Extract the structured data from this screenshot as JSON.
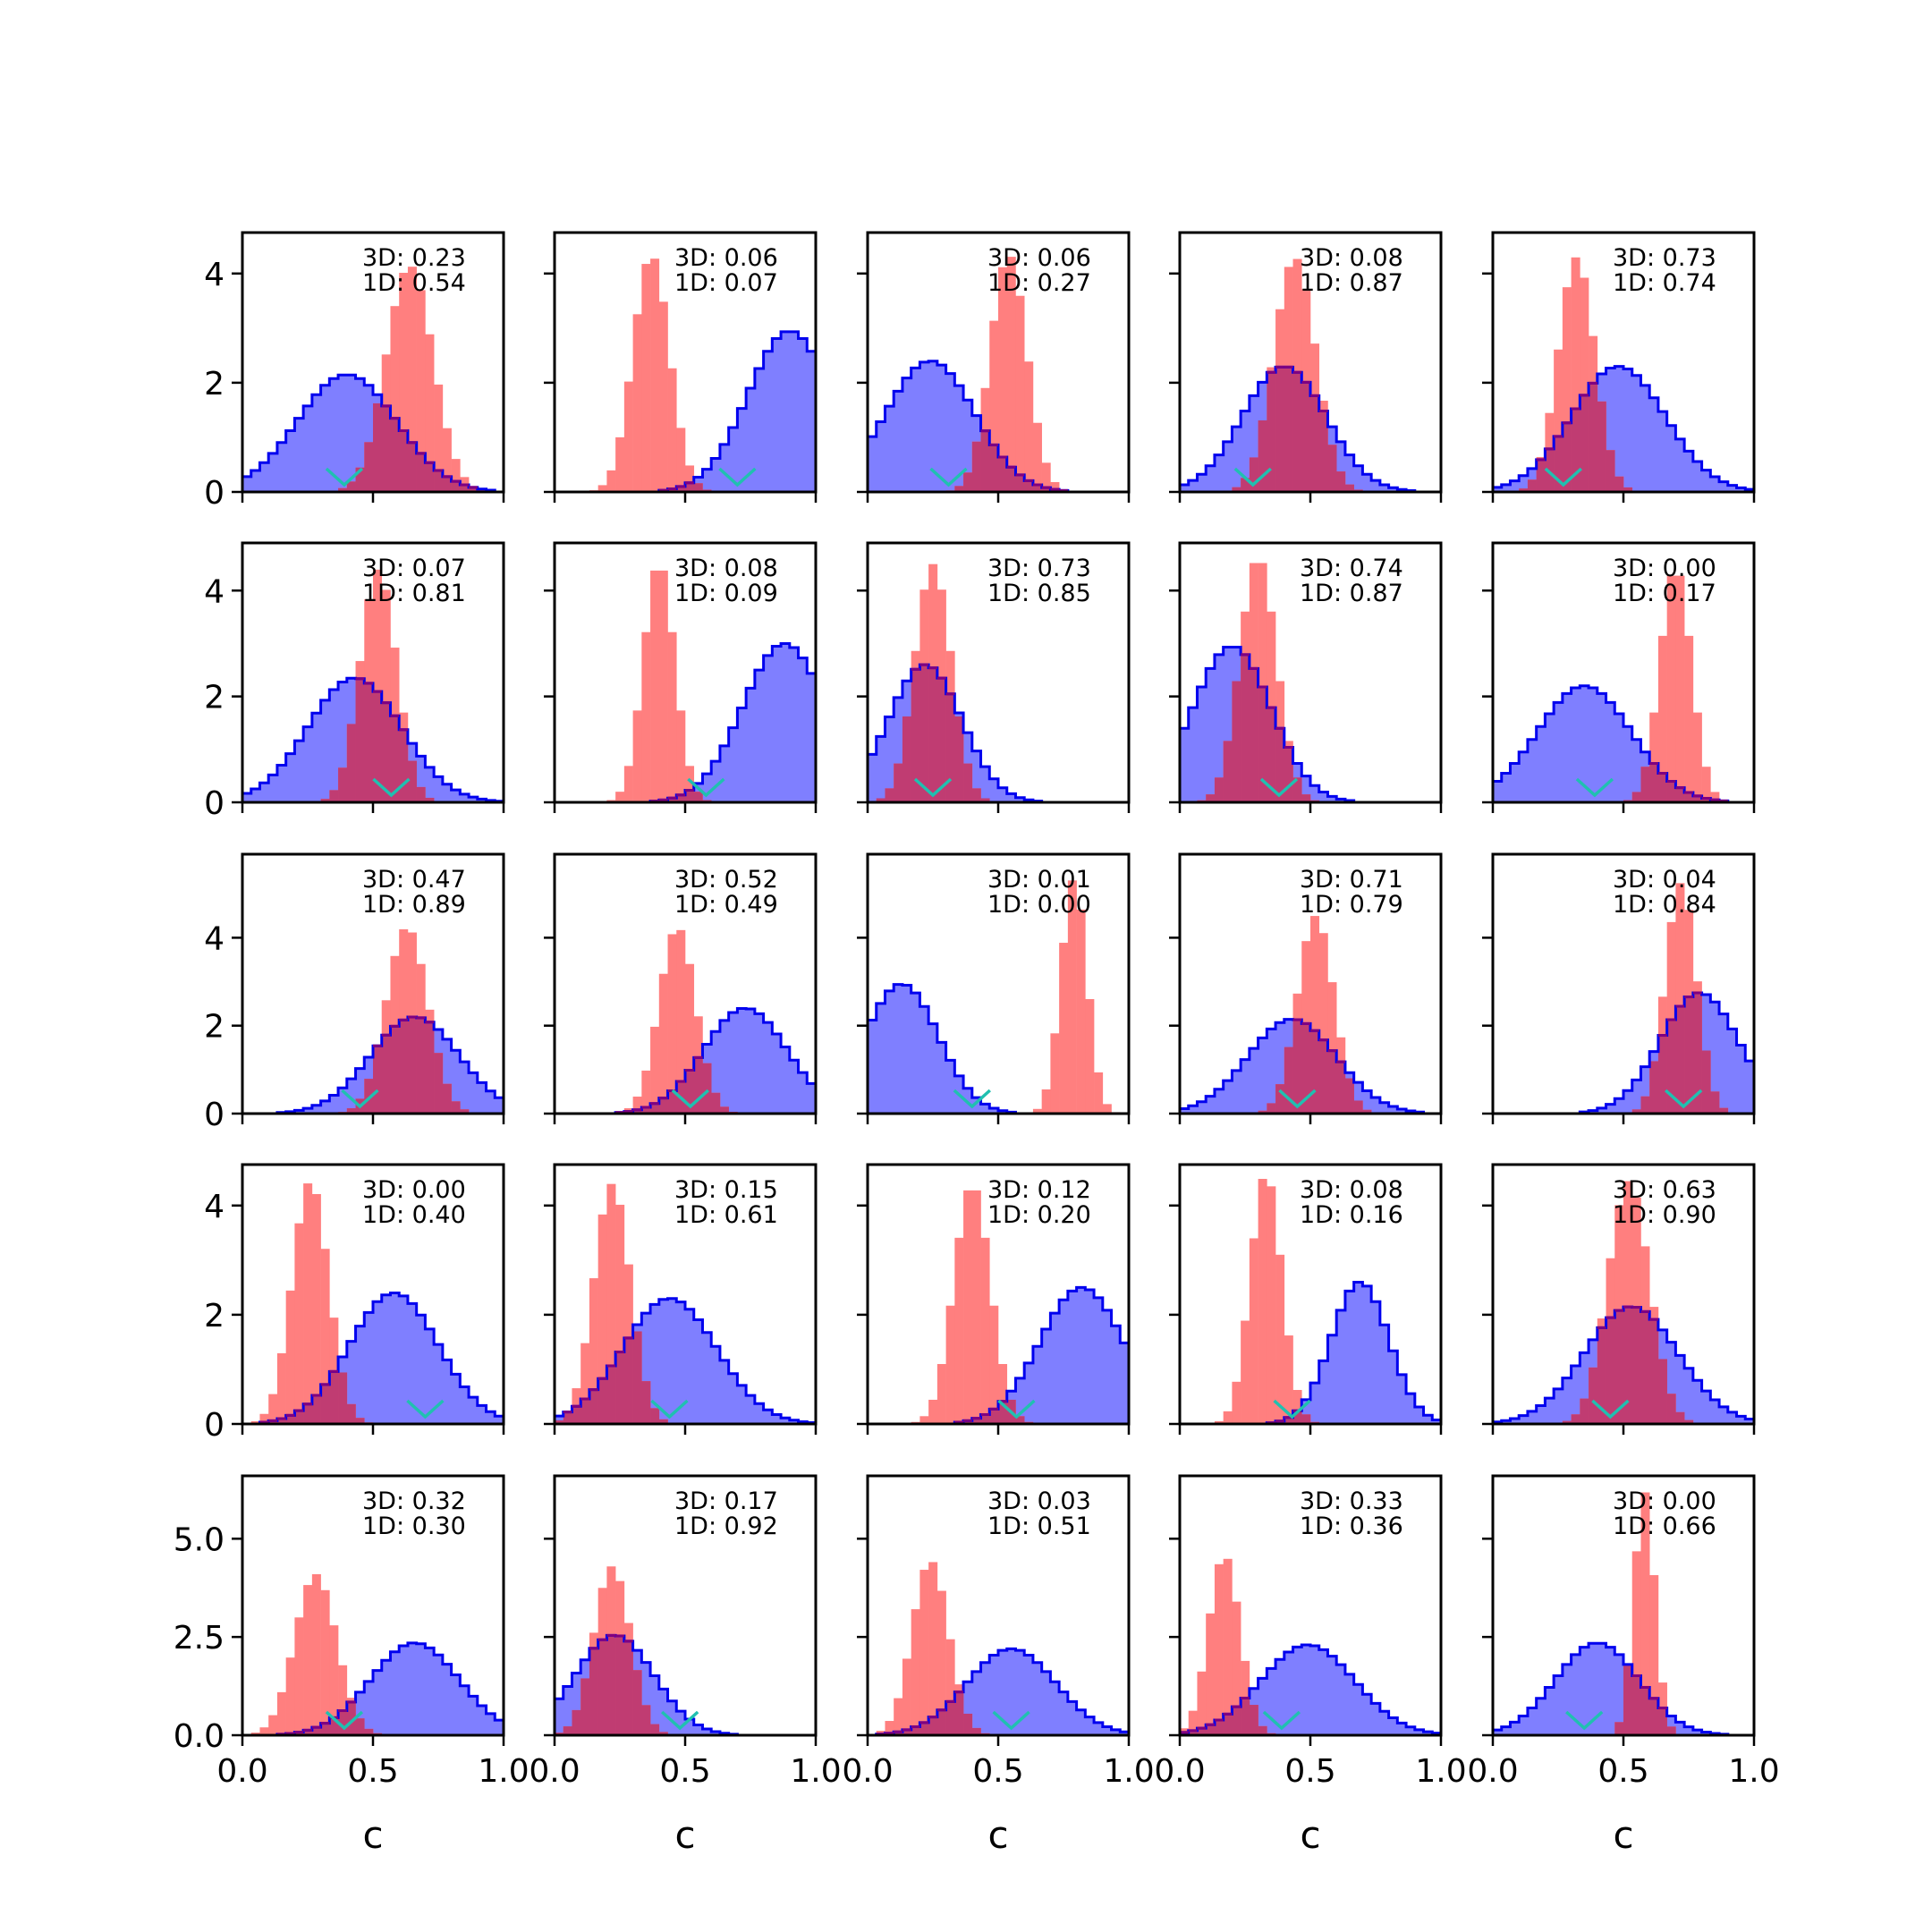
{
  "figure": {
    "background": "#ffffff",
    "colors": {
      "blue_fill": "#7f7fff",
      "blue_edge": "#0000ee",
      "red_fill": "#ff7f7f",
      "overlap": "#c03c72",
      "overlap_edge": "#800080",
      "marker": "#20c0b0"
    }
  },
  "chart_data": {
    "type": "histogram-grid",
    "rows": 5,
    "cols": 5,
    "xlabel": "c",
    "xlim": [
      0.0,
      1.0
    ],
    "xticks": [
      0.0,
      0.5,
      1.0
    ],
    "xtick_labels": [
      "0.0",
      "0.5",
      "1.0"
    ],
    "row_yaxes": [
      {
        "ylim": [
          0,
          4.75
        ],
        "yticks": [
          0,
          2,
          4
        ],
        "ytick_labels": [
          "0",
          "2",
          "4"
        ]
      },
      {
        "ylim": [
          0,
          4.9
        ],
        "yticks": [
          0,
          2,
          4
        ],
        "ytick_labels": [
          "0",
          "2",
          "4"
        ]
      },
      {
        "ylim": [
          0,
          5.9
        ],
        "yticks": [
          0,
          2,
          4
        ],
        "ytick_labels": [
          "0",
          "2",
          "4"
        ]
      },
      {
        "ylim": [
          0,
          4.75
        ],
        "yticks": [
          0,
          2,
          4
        ],
        "ytick_labels": [
          "0",
          "2",
          "4"
        ]
      },
      {
        "ylim": [
          0,
          6.6
        ],
        "yticks": [
          0,
          2.5,
          5.0
        ],
        "ytick_labels": [
          "0.0",
          "2.5",
          "5.0"
        ]
      }
    ],
    "legend": "none",
    "grid": false,
    "panels": [
      {
        "annotation": [
          "3D: 0.23",
          "1D: 0.54"
        ],
        "blue": {
          "mu": 0.4,
          "sd": 0.19,
          "peak": 2.15
        },
        "red": {
          "mu": 0.64,
          "sd": 0.09,
          "peak": 4.15
        },
        "marker_x": 0.39
      },
      {
        "annotation": [
          "3D: 0.06",
          "1D: 0.07"
        ],
        "blue": {
          "mu": 0.9,
          "sd": 0.16,
          "peak": 2.95
        },
        "red": {
          "mu": 0.37,
          "sd": 0.07,
          "peak": 4.35
        },
        "marker_x": 0.7
      },
      {
        "annotation": [
          "3D: 0.06",
          "1D: 0.27"
        ],
        "blue": {
          "mu": 0.24,
          "sd": 0.17,
          "peak": 2.4
        },
        "red": {
          "mu": 0.54,
          "sd": 0.07,
          "peak": 4.35
        },
        "marker_x": 0.31
      },
      {
        "annotation": [
          "3D: 0.08",
          "1D: 0.87"
        ],
        "blue": {
          "mu": 0.4,
          "sd": 0.16,
          "peak": 2.3
        },
        "red": {
          "mu": 0.44,
          "sd": 0.08,
          "peak": 4.3
        },
        "marker_x": 0.28
      },
      {
        "annotation": [
          "3D: 0.73",
          "1D: 0.74"
        ],
        "blue": {
          "mu": 0.48,
          "sd": 0.18,
          "peak": 2.3
        },
        "red": {
          "mu": 0.32,
          "sd": 0.07,
          "peak": 4.3
        },
        "marker_x": 0.27
      },
      {
        "annotation": [
          "3D: 0.07",
          "1D: 0.81"
        ],
        "blue": {
          "mu": 0.43,
          "sd": 0.18,
          "peak": 2.35
        },
        "red": {
          "mu": 0.52,
          "sd": 0.07,
          "peak": 4.4
        },
        "marker_x": 0.57
      },
      {
        "annotation": [
          "3D: 0.08",
          "1D: 0.09"
        ],
        "blue": {
          "mu": 0.88,
          "sd": 0.16,
          "peak": 3.0
        },
        "red": {
          "mu": 0.4,
          "sd": 0.06,
          "peak": 4.55
        },
        "marker_x": 0.58
      },
      {
        "annotation": [
          "3D: 0.73",
          "1D: 0.85"
        ],
        "blue": {
          "mu": 0.22,
          "sd": 0.14,
          "peak": 2.6
        },
        "red": {
          "mu": 0.25,
          "sd": 0.07,
          "peak": 4.5
        },
        "marker_x": 0.25
      },
      {
        "annotation": [
          "3D: 0.74",
          "1D: 0.87"
        ],
        "blue": {
          "mu": 0.2,
          "sd": 0.15,
          "peak": 2.95
        },
        "red": {
          "mu": 0.3,
          "sd": 0.07,
          "peak": 4.65
        },
        "marker_x": 0.38
      },
      {
        "annotation": [
          "3D: 0.00",
          "1D: 0.17"
        ],
        "blue": {
          "mu": 0.35,
          "sd": 0.18,
          "peak": 2.2
        },
        "red": {
          "mu": 0.7,
          "sd": 0.06,
          "peak": 4.45
        },
        "marker_x": 0.39
      },
      {
        "annotation": [
          "3D: 0.47",
          "1D: 0.89"
        ],
        "blue": {
          "mu": 0.66,
          "sd": 0.17,
          "peak": 2.2
        },
        "red": {
          "mu": 0.63,
          "sd": 0.08,
          "peak": 4.25
        },
        "marker_x": 0.45
      },
      {
        "annotation": [
          "3D: 0.52",
          "1D: 0.49"
        ],
        "blue": {
          "mu": 0.73,
          "sd": 0.16,
          "peak": 2.4
        },
        "red": {
          "mu": 0.47,
          "sd": 0.07,
          "peak": 4.25
        },
        "marker_x": 0.52
      },
      {
        "annotation": [
          "3D: 0.01",
          "1D: 0.00"
        ],
        "blue": {
          "mu": 0.13,
          "sd": 0.14,
          "peak": 2.95
        },
        "red": {
          "mu": 0.79,
          "sd": 0.05,
          "peak": 5.35
        },
        "marker_x": 0.4
      },
      {
        "annotation": [
          "3D: 0.71",
          "1D: 0.79"
        ],
        "blue": {
          "mu": 0.43,
          "sd": 0.17,
          "peak": 2.15
        },
        "red": {
          "mu": 0.52,
          "sd": 0.07,
          "peak": 4.5
        },
        "marker_x": 0.45
      },
      {
        "annotation": [
          "3D: 0.04",
          "1D: 0.84"
        ],
        "blue": {
          "mu": 0.79,
          "sd": 0.15,
          "peak": 2.75
        },
        "red": {
          "mu": 0.72,
          "sd": 0.06,
          "peak": 5.25
        },
        "marker_x": 0.73
      },
      {
        "annotation": [
          "3D: 0.00",
          "1D: 0.40"
        ],
        "blue": {
          "mu": 0.58,
          "sd": 0.17,
          "peak": 2.4
        },
        "red": {
          "mu": 0.26,
          "sd": 0.07,
          "peak": 4.45
        },
        "marker_x": 0.7
      },
      {
        "annotation": [
          "3D: 0.15",
          "1D: 0.61"
        ],
        "blue": {
          "mu": 0.44,
          "sd": 0.18,
          "peak": 2.3
        },
        "red": {
          "mu": 0.22,
          "sd": 0.07,
          "peak": 4.4
        },
        "marker_x": 0.44
      },
      {
        "annotation": [
          "3D: 0.12",
          "1D: 0.20"
        ],
        "blue": {
          "mu": 0.82,
          "sd": 0.16,
          "peak": 2.5
        },
        "red": {
          "mu": 0.4,
          "sd": 0.07,
          "peak": 4.4
        },
        "marker_x": 0.57
      },
      {
        "annotation": [
          "3D: 0.08",
          "1D: 0.16"
        ],
        "blue": {
          "mu": 0.69,
          "sd": 0.11,
          "peak": 2.6
        },
        "red": {
          "mu": 0.33,
          "sd": 0.06,
          "peak": 4.6
        },
        "marker_x": 0.43
      },
      {
        "annotation": [
          "3D: 0.63",
          "1D: 0.90"
        ],
        "blue": {
          "mu": 0.53,
          "sd": 0.18,
          "peak": 2.15
        },
        "red": {
          "mu": 0.52,
          "sd": 0.08,
          "peak": 4.45
        },
        "marker_x": 0.45
      },
      {
        "annotation": [
          "3D: 0.32",
          "1D: 0.30"
        ],
        "blue": {
          "mu": 0.66,
          "sd": 0.17,
          "peak": 2.35
        },
        "red": {
          "mu": 0.28,
          "sd": 0.08,
          "peak": 4.1
        },
        "marker_x": 0.39
      },
      {
        "annotation": [
          "3D: 0.17",
          "1D: 0.92"
        ],
        "blue": {
          "mu": 0.23,
          "sd": 0.15,
          "peak": 2.55
        },
        "red": {
          "mu": 0.22,
          "sd": 0.07,
          "peak": 4.3
        },
        "marker_x": 0.48
      },
      {
        "annotation": [
          "3D: 0.03",
          "1D: 0.51"
        ],
        "blue": {
          "mu": 0.55,
          "sd": 0.17,
          "peak": 2.2
        },
        "red": {
          "mu": 0.24,
          "sd": 0.07,
          "peak": 4.45
        },
        "marker_x": 0.55
      },
      {
        "annotation": [
          "3D: 0.33",
          "1D: 0.36"
        ],
        "blue": {
          "mu": 0.49,
          "sd": 0.18,
          "peak": 2.3
        },
        "red": {
          "mu": 0.17,
          "sd": 0.06,
          "peak": 4.6
        },
        "marker_x": 0.39
      },
      {
        "annotation": [
          "3D: 0.00",
          "1D: 0.66"
        ],
        "blue": {
          "mu": 0.4,
          "sd": 0.16,
          "peak": 2.35
        },
        "red": {
          "mu": 0.58,
          "sd": 0.04,
          "peak": 6.2
        },
        "marker_x": 0.35
      }
    ]
  }
}
